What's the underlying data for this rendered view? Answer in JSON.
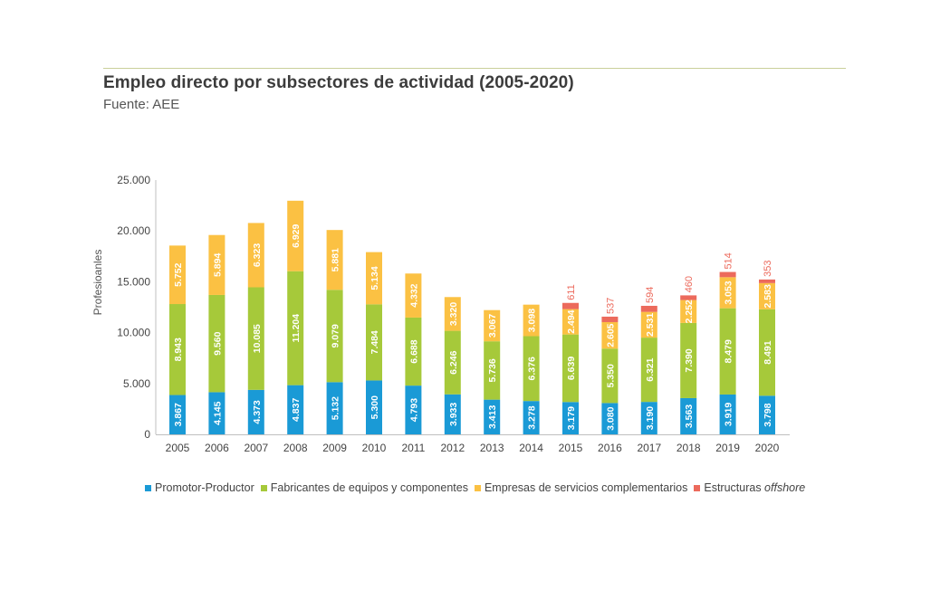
{
  "header": {
    "title": "Empleo directo por subsectores de actividad (2005-2020)",
    "subtitle": "Fuente: AEE"
  },
  "legend": {
    "items": [
      {
        "label": "Promotor-Productor",
        "color": "#1a9ad6"
      },
      {
        "label": "Fabricantes de equipos y componentes",
        "color": "#a6c93a"
      },
      {
        "label": "Empresas de servicios complementarios",
        "color": "#fbc143"
      },
      {
        "label_prefix": "Estructuras ",
        "label_italic": "offshore",
        "color": "#ec6a5c"
      }
    ]
  },
  "chart_data": {
    "type": "bar",
    "stacked": true,
    "ylabel": "Profesioanles",
    "ylim": [
      0,
      25000
    ],
    "yticks": [
      "0",
      "5.000",
      "10.000",
      "15.000",
      "20.000",
      "25.000"
    ],
    "ytick_values": [
      0,
      5000,
      10000,
      15000,
      20000,
      25000
    ],
    "categories": [
      "2005",
      "2006",
      "2007",
      "2008",
      "2009",
      "2010",
      "2011",
      "2012",
      "2013",
      "2014",
      "2015",
      "2016",
      "2017",
      "2018",
      "2019",
      "2020"
    ],
    "series": [
      {
        "name": "Promotor-Productor",
        "color": "#1a9ad6",
        "values": [
          3867,
          4145,
          4373,
          4837,
          5132,
          5300,
          4793,
          3933,
          3413,
          3278,
          3179,
          3080,
          3190,
          3563,
          3919,
          3798
        ],
        "labels": [
          "3.867",
          "4.145",
          "4.373",
          "4.837",
          "5.132",
          "5.300",
          "4.793",
          "3.933",
          "3.413",
          "3.278",
          "3.179",
          "3.080",
          "3.190",
          "3.563",
          "3.919",
          "3.798"
        ]
      },
      {
        "name": "Fabricantes de equipos y componentes",
        "color": "#a6c93a",
        "values": [
          8943,
          9560,
          10085,
          11204,
          9079,
          7484,
          6688,
          6246,
          5736,
          6376,
          6639,
          5350,
          6321,
          7390,
          8479,
          8491
        ],
        "labels": [
          "8.943",
          "9.560",
          "10.085",
          "11.204",
          "9.079",
          "7.484",
          "6.688",
          "6.246",
          "5.736",
          "6.376",
          "6.639",
          "5.350",
          "6.321",
          "7.390",
          "8.479",
          "8.491"
        ]
      },
      {
        "name": "Empresas de servicios complementarios",
        "color": "#fbc143",
        "values": [
          5752,
          5894,
          6323,
          6929,
          5881,
          5134,
          4332,
          3320,
          3067,
          3098,
          2494,
          2605,
          2531,
          2252,
          3053,
          2583
        ],
        "labels": [
          "5.752",
          "5.894",
          "6.323",
          "6.929",
          "5.881",
          "5.134",
          "4.332",
          "3.320",
          "3.067",
          "3.098",
          "2.494",
          "2.605",
          "2.531",
          "2.252",
          "3.053",
          "2.583"
        ]
      },
      {
        "name": "Estructuras offshore",
        "color": "#ec6a5c",
        "values": [
          0,
          0,
          0,
          0,
          0,
          0,
          0,
          0,
          0,
          0,
          611,
          537,
          594,
          460,
          514,
          353
        ],
        "labels": [
          "",
          "",
          "",
          "",
          "",
          "",
          "",
          "",
          "",
          "",
          "611",
          "537",
          "594",
          "460",
          "514",
          "353"
        ]
      }
    ],
    "grid": false,
    "legend_position": "bottom"
  }
}
